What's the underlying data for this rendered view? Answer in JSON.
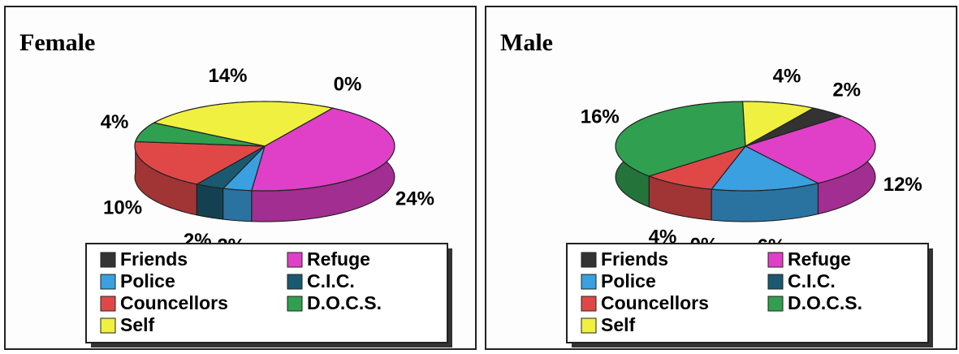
{
  "chart_data": [
    {
      "type": "pie",
      "title": "Female",
      "legend": "bottom",
      "categories": [
        "Friends",
        "Refuge",
        "Police",
        "C.I.C.",
        "Councellors",
        "D.O.C.S.",
        "Self"
      ],
      "values": [
        0,
        24,
        2,
        2,
        10,
        4,
        14
      ],
      "value_labels": [
        "0%",
        "24%",
        "2%",
        "2%",
        "10%",
        "4%",
        "14%"
      ],
      "colors": [
        "#333333",
        "#e040c8",
        "#3aa0e0",
        "#1a5a70",
        "#e04848",
        "#30a050",
        "#f0f040"
      ]
    },
    {
      "type": "pie",
      "title": "Male",
      "legend": "bottom",
      "categories": [
        "Friends",
        "Refuge",
        "Police",
        "C.I.C.",
        "Councellors",
        "D.O.C.S.",
        "Self"
      ],
      "values": [
        2,
        12,
        6,
        0,
        4,
        16,
        4
      ],
      "value_labels": [
        "2%",
        "12%",
        "6%",
        "0%",
        "4%",
        "16%",
        "4%"
      ],
      "colors": [
        "#333333",
        "#e040c8",
        "#3aa0e0",
        "#1a5a70",
        "#e04848",
        "#30a050",
        "#f0f040"
      ]
    }
  ]
}
